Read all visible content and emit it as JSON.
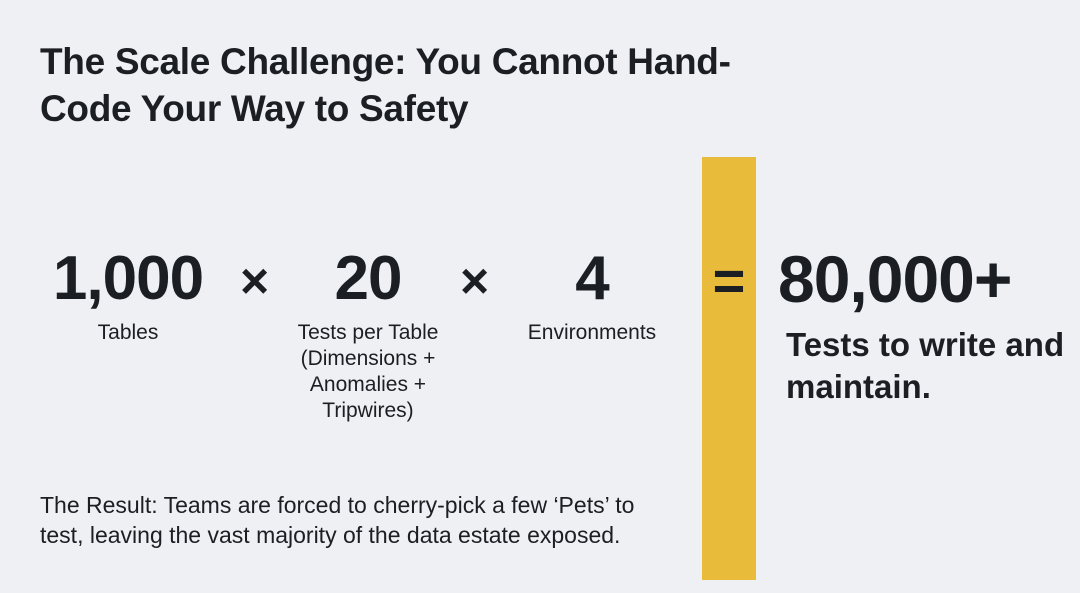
{
  "slide": {
    "title": "The Scale Challenge: You Cannot Hand-Code Your Way to Safety",
    "equation": {
      "terms": [
        {
          "value": "1,000",
          "label": "Tables"
        },
        {
          "value": "20",
          "label": "Tests per Table (Dimensions + Anomalies + Tripwires)"
        },
        {
          "value": "4",
          "label": "Environments"
        }
      ],
      "operators": [
        "×",
        "×"
      ],
      "equals": "=",
      "result_value": "80,000+",
      "result_label": "Tests to write and maintain."
    },
    "result_text": "The Result: Teams are forced to cherry-pick a few ‘Pets’ to test, leaving the vast majority of the data estate exposed.",
    "colors": {
      "background": "#eff0f3",
      "accent_bar": "#e8bc3a",
      "text": "#1b1e22"
    }
  }
}
